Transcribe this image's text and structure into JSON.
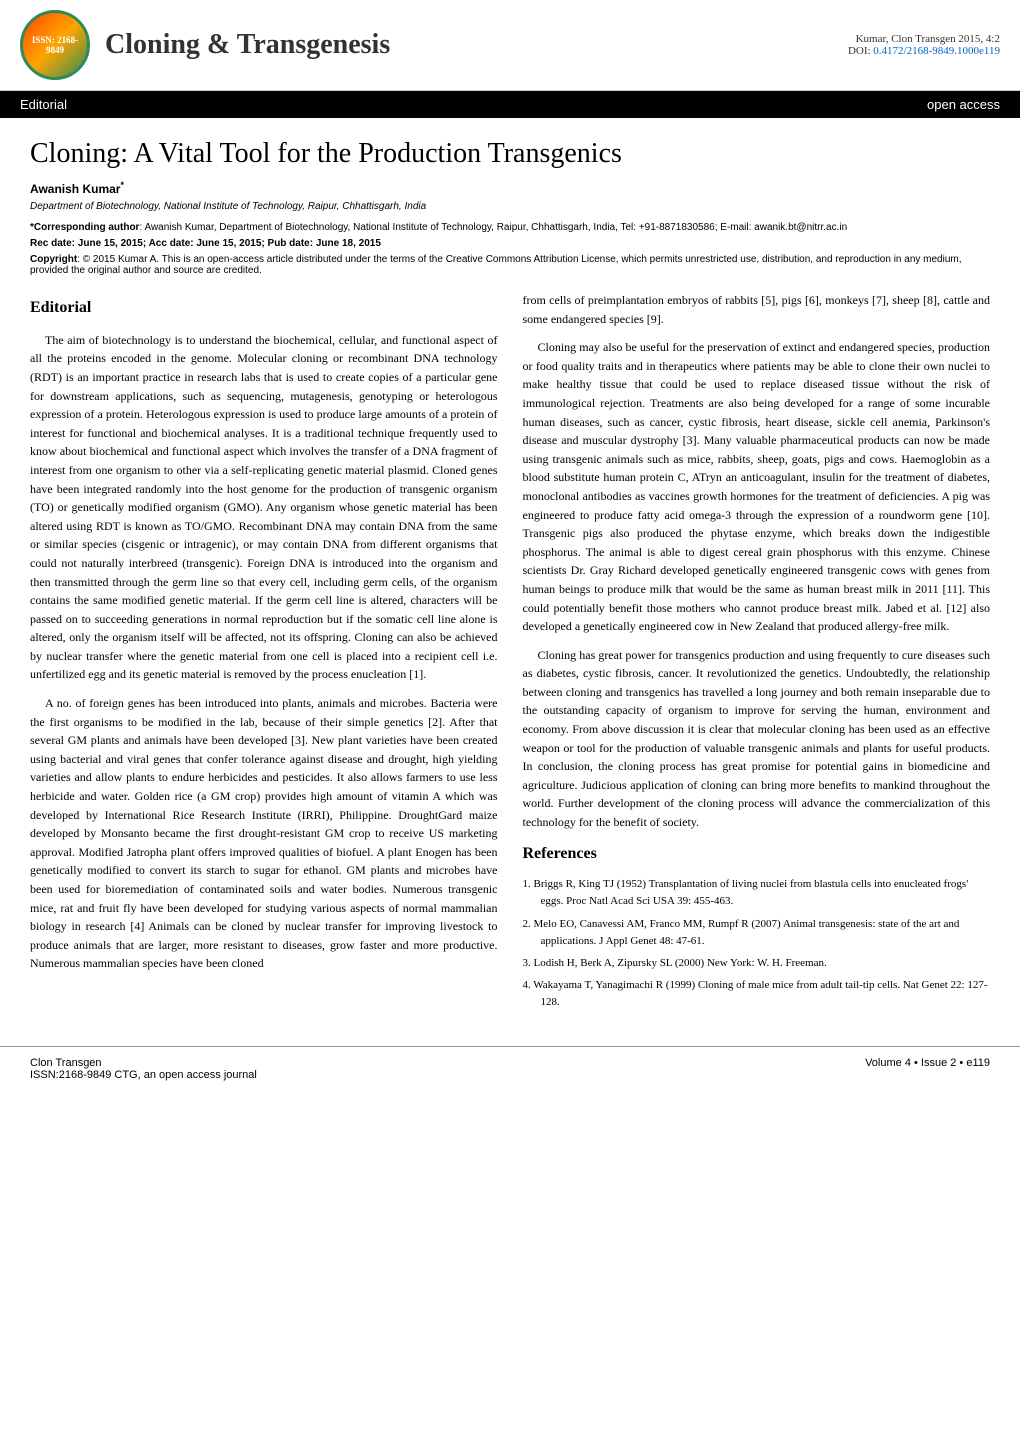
{
  "header": {
    "logo_text": "ISSN: 2168-9849",
    "journal_title": "Cloning & Transgenesis",
    "citation": "Kumar, Clon Transgen 2015, 4:2",
    "doi_label": "DOI:",
    "doi": "0.4172/2168-9849.1000e119"
  },
  "blackbar": {
    "left": "Editorial",
    "right": "open access"
  },
  "article": {
    "title": "Cloning: A Vital Tool for the Production Transgenics",
    "author": "Awanish Kumar",
    "author_sup": "*",
    "affiliation": "Department of Biotechnology, National Institute of Technology, Raipur, Chhattisgarh, India",
    "corresponding_label": "*Corresponding author",
    "corresponding_text": ": Awanish Kumar, Department of Biotechnology, National Institute of Technology, Raipur, Chhattisgarh, India, Tel: +91-8871830586; E-mail: awanik.bt@nitrr.ac.in",
    "dates": "Rec date: June 15, 2015; Acc date: June 15, 2015; Pub date: June 18, 2015",
    "copyright_label": "Copyright",
    "copyright_text": ": © 2015 Kumar A. This is an open-access article distributed under the terms of the Creative Commons Attribution License, which permits unrestricted use, distribution, and reproduction in any medium, provided the original author and source are credited."
  },
  "body": {
    "editorial_heading": "Editorial",
    "references_heading": "References",
    "para1": "The aim of biotechnology is to understand the biochemical, cellular, and functional aspect of all the proteins encoded in the genome. Molecular cloning or recombinant DNA technology (RDT) is an important practice in research labs that is used to create copies of a particular gene for downstream applications, such as sequencing, mutagenesis, genotyping or heterologous expression of a protein. Heterologous expression is used to produce large amounts of a protein of interest for functional and biochemical analyses. It is a traditional technique frequently used to know about biochemical and functional aspect which involves the transfer of a DNA fragment of interest from one organism to other via a self-replicating genetic material plasmid. Cloned genes have been integrated randomly into the host genome for the production of transgenic organism (TO) or genetically modified organism (GMO). Any organism whose genetic material has been altered using RDT is known as TO/GMO. Recombinant DNA may contain DNA from the same or similar species (cisgenic or intragenic), or may contain DNA from different organisms that could not naturally interbreed (transgenic). Foreign DNA is introduced into the organism and then transmitted through the germ line so that every cell, including germ cells, of the organism contains the same modified genetic material. If the germ cell line is altered, characters will be passed on to succeeding generations in normal reproduction but if the somatic cell line alone is altered, only the organism itself will be affected, not its offspring. Cloning can also be achieved by nuclear transfer where the genetic material from one cell is placed into a recipient cell i.e. unfertilized egg and its genetic material is removed by the process enucleation [1].",
    "para2": "A no. of foreign genes has been introduced into plants, animals and microbes. Bacteria were the first organisms to be modified in the lab, because of their simple genetics [2]. After that several GM plants and animals have been developed [3]. New plant varieties have been created using bacterial and viral genes that confer tolerance against disease and drought, high yielding varieties and allow plants to endure herbicides and pesticides. It also allows farmers to use less herbicide and water. Golden rice (a GM crop) provides high amount of vitamin A which was developed by International Rice Research Institute (IRRI), Philippine. DroughtGard maize developed by Monsanto became the first drought-resistant GM crop to receive US marketing approval. Modified Jatropha plant offers improved qualities of biofuel. A plant Enogen has been genetically modified to convert its starch to sugar for ethanol. GM plants and microbes have been used for bioremediation of contaminated soils and water bodies. Numerous transgenic mice, rat and fruit fly have been developed for studying various aspects of normal mammalian biology in research [4] Animals can be cloned by nuclear transfer for improving livestock to produce animals that are larger, more resistant to diseases, grow faster and more productive. Numerous mammalian species have been cloned",
    "para3_top": "from cells of preimplantation embryos of rabbits [5], pigs [6], monkeys [7], sheep [8], cattle and some endangered species [9].",
    "para4": "Cloning may also be useful for the preservation of extinct and endangered species, production or food quality traits and in therapeutics where patients may be able to clone their own nuclei to make healthy tissue that could be used to replace diseased tissue without the risk of immunological rejection. Treatments are also being developed for a range of some incurable human diseases, such as cancer, cystic fibrosis, heart disease, sickle cell anemia, Parkinson's disease and muscular dystrophy [3]. Many valuable pharmaceutical products can now be made using transgenic animals such as mice, rabbits, sheep, goats, pigs and cows. Haemoglobin as a blood substitute human protein C, ATryn an anticoagulant, insulin for the treatment of diabetes, monoclonal antibodies as vaccines growth hormones for the treatment of deficiencies. A pig was engineered to produce fatty acid omega-3 through the expression of a roundworm gene [10]. Transgenic pigs also produced the phytase enzyme, which breaks down the indigestible phosphorus. The animal is able to digest cereal grain phosphorus with this enzyme. Chinese scientists Dr. Gray Richard developed genetically engineered transgenic cows with genes from human beings to produce milk that would be the same as human breast milk in 2011 [11]. This could potentially benefit those mothers who cannot produce breast milk. Jabed et al. [12] also developed a genetically engineered cow in New Zealand that produced allergy-free milk.",
    "para5": "Cloning has great power for transgenics production and using frequently to cure diseases such as diabetes, cystic fibrosis, cancer. It revolutionized the genetics. Undoubtedly, the relationship between cloning and transgenics has travelled a long journey and both remain inseparable due to the outstanding capacity of organism to improve for serving the human, environment and economy. From above discussion it is clear that molecular cloning has been used as an effective weapon or tool for the production of valuable transgenic animals and plants for useful products. In conclusion, the cloning process has great promise for potential gains in biomedicine and agriculture. Judicious application of cloning can bring more benefits to mankind throughout the world. Further development of the cloning process will advance the commercialization of this technology for the benefit of society.",
    "references": [
      "1. Briggs R, King TJ (1952) Transplantation of living nuclei from blastula cells into enucleated frogs' eggs. Proc Natl Acad Sci USA 39: 455-463.",
      "2. Melo EO, Canavessi AM, Franco MM, Rumpf R (2007) Animal transgenesis: state of the art and applications. J Appl Genet 48: 47-61.",
      "3. Lodish H, Berk A, Zipursky SL (2000) New York: W. H. Freeman.",
      "4. Wakayama T, Yanagimachi R (1999) Cloning of male mice from adult tail-tip cells. Nat Genet 22: 127-128."
    ]
  },
  "footer": {
    "left_line1": "Clon Transgen",
    "left_line2": "ISSN:2168-9849 CTG, an open access journal",
    "right": "Volume 4 • Issue 2 • e119"
  }
}
